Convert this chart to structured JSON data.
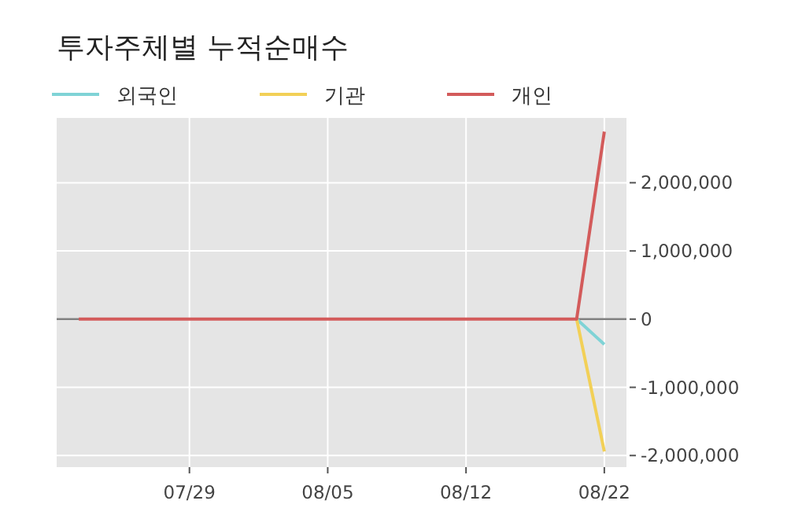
{
  "chart_data": {
    "type": "line",
    "title": "투자주체별 누적순매수",
    "categories": [
      null,
      null,
      null,
      null,
      "07/29",
      null,
      null,
      null,
      null,
      "08/05",
      null,
      null,
      null,
      null,
      "08/12",
      null,
      null,
      null,
      null,
      "08/22"
    ],
    "series": [
      {
        "name": "외국인",
        "color": "#7fd3d6",
        "values": [
          null,
          null,
          null,
          null,
          null,
          null,
          null,
          null,
          null,
          null,
          null,
          null,
          null,
          null,
          null,
          null,
          null,
          null,
          0,
          -370000
        ]
      },
      {
        "name": "기관",
        "color": "#f2d057",
        "values": [
          null,
          null,
          null,
          null,
          null,
          null,
          null,
          null,
          null,
          null,
          null,
          null,
          null,
          null,
          null,
          null,
          null,
          null,
          0,
          -1940000
        ]
      },
      {
        "name": "개인",
        "color": "#d35b5b",
        "values": [
          0,
          0,
          0,
          0,
          0,
          0,
          0,
          0,
          0,
          0,
          0,
          0,
          0,
          0,
          0,
          0,
          0,
          0,
          0,
          2750000
        ]
      }
    ],
    "ylim": [
      -2170000,
      2950000
    ],
    "yticks": [
      {
        "value": -2000000,
        "label": "-2,000,000"
      },
      {
        "value": -1000000,
        "label": "-1,000,000"
      },
      0,
      {
        "value": 1000000,
        "label": "1,000,000"
      },
      {
        "value": 2000000,
        "label": "2,000,000"
      }
    ],
    "ref_lines": [
      {
        "axis": "y",
        "value": 0,
        "color": "#808080"
      }
    ],
    "grid": true,
    "legend": "top left",
    "marker": "none",
    "line_style": "solid"
  }
}
